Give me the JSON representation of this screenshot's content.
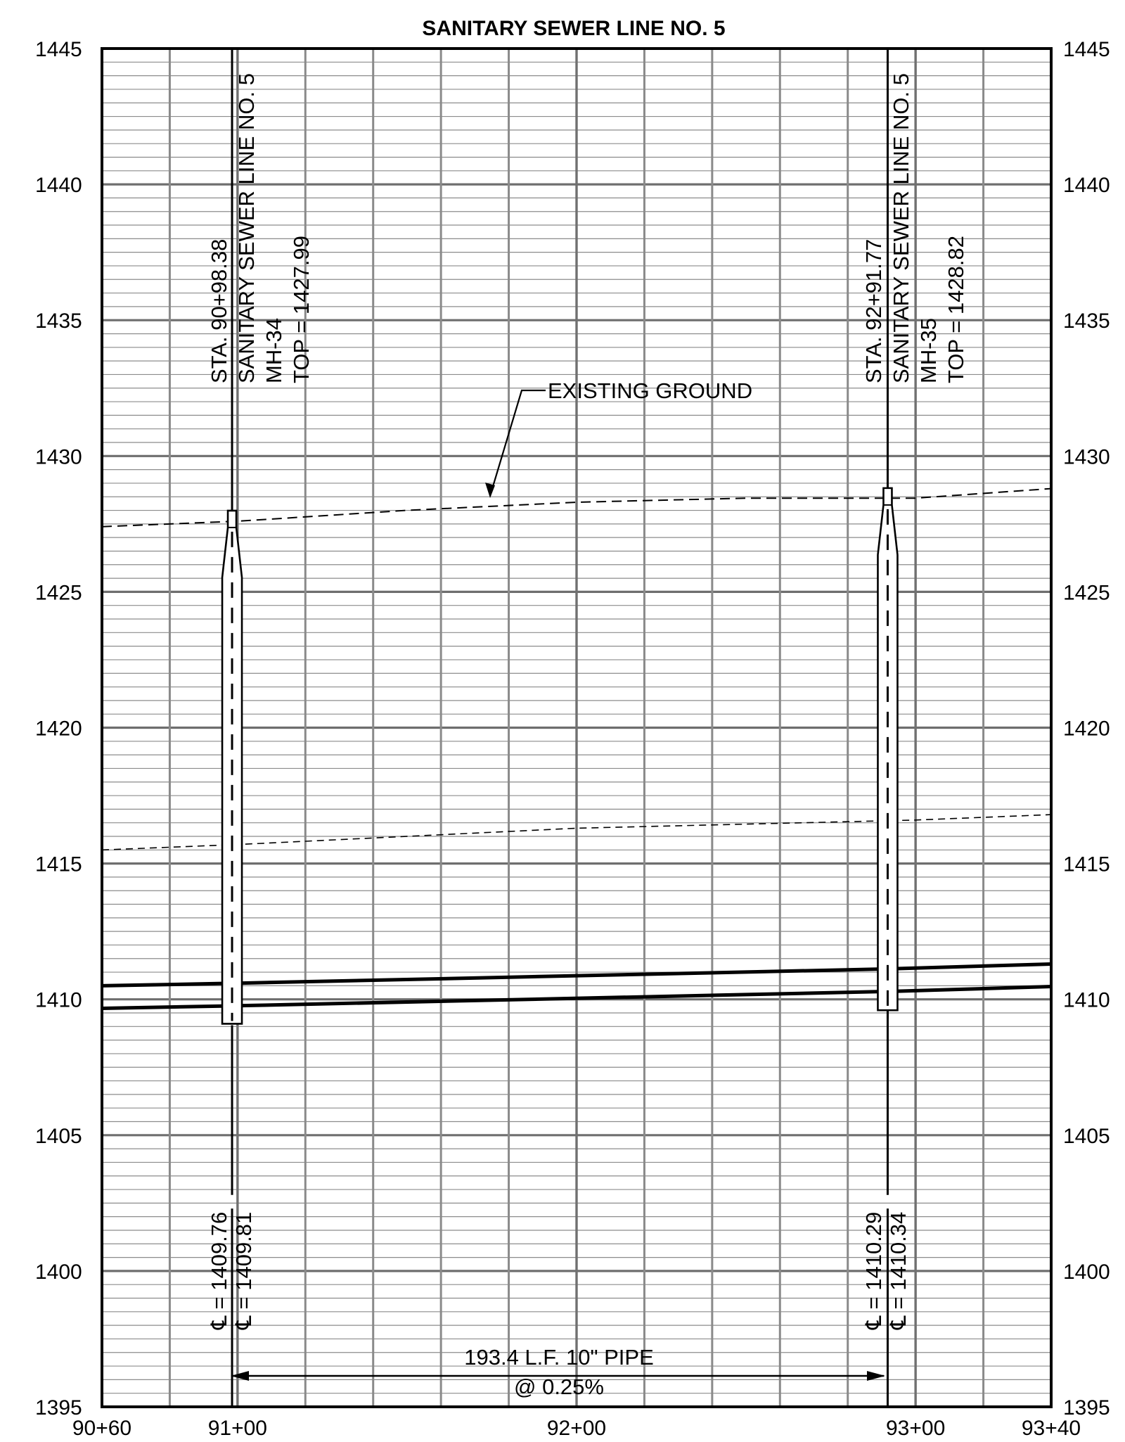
{
  "title": "SANITARY SEWER LINE NO. 5",
  "axes": {
    "elevation_labels": [
      "1445",
      "1440",
      "1435",
      "1430",
      "1425",
      "1420",
      "1415",
      "1410",
      "1405",
      "1400",
      "1395"
    ],
    "station_labels": [
      "90+60",
      "91+00",
      "92+00",
      "93+00",
      "93+40"
    ],
    "station_range": [
      9060,
      9340
    ],
    "elevation_range": [
      1395,
      1445
    ],
    "grid": {
      "minor_vertical_every_ft": 20,
      "major_vertical_every_ft": 100,
      "minor_horizontal_every_ft": 0.5,
      "major_horizontal_every_ft": 5
    }
  },
  "manholes": [
    {
      "station_text": "STA. 90+98.38",
      "line_text": "SANITARY SEWER LINE NO. 5",
      "id_text": "MH-34",
      "top_text": "TOP = 1427.99",
      "invert_in_text": "℄ = 1409.76",
      "invert_out_text": "℄ = 1409.81",
      "station": 9098.38,
      "top": 1427.99,
      "bottom": 1409.1
    },
    {
      "station_text": "STA. 92+91.77",
      "line_text": "SANITARY SEWER LINE NO. 5",
      "id_text": "MH-35",
      "top_text": "TOP = 1428.82",
      "invert_in_text": "℄ = 1410.29",
      "invert_out_text": "℄ = 1410.34",
      "station": 9291.77,
      "top": 1428.82,
      "bottom": 1409.6
    }
  ],
  "existing_ground_label": "EXISTING GROUND",
  "pipe_note": {
    "length_text": "193.4 L.F. 10\" PIPE",
    "slope_text": "@ 0.25%"
  },
  "chart_data": {
    "type": "line",
    "title": "SANITARY SEWER LINE NO. 5",
    "xlabel": "",
    "ylabel": "",
    "xlim": [
      9060,
      9340
    ],
    "ylim": [
      1395,
      1445
    ],
    "series": [
      {
        "name": "EXISTING GROUND",
        "style": "dashed",
        "points": [
          [
            9060,
            1427.4
          ],
          [
            9100,
            1427.6
          ],
          [
            9150,
            1428.0
          ],
          [
            9200,
            1428.3
          ],
          [
            9250,
            1428.45
          ],
          [
            9300,
            1428.45
          ],
          [
            9340,
            1428.8
          ]
        ]
      },
      {
        "name": "",
        "style": "dashed-thin",
        "points": [
          [
            9060,
            1415.5
          ],
          [
            9100,
            1415.7
          ],
          [
            9200,
            1416.3
          ],
          [
            9300,
            1416.6
          ],
          [
            9340,
            1416.8
          ]
        ]
      },
      {
        "name": "",
        "style": "pipe-crown",
        "points": [
          [
            9060,
            1410.5
          ],
          [
            9098.38,
            1410.59
          ],
          [
            9291.77,
            1411.12
          ],
          [
            9340,
            1411.3
          ]
        ]
      },
      {
        "name": "",
        "style": "pipe-invert",
        "points": [
          [
            9060,
            1409.67
          ],
          [
            9098.38,
            1409.76
          ],
          [
            9291.77,
            1410.29
          ],
          [
            9340,
            1410.47
          ]
        ]
      }
    ]
  }
}
